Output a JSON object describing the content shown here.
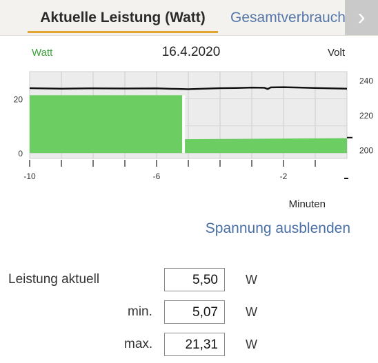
{
  "tabs": {
    "active_label": "Aktuelle Leistung (Watt)",
    "inactive_label": "Gesamtverbrauch",
    "next_icon": "chevron-right-icon"
  },
  "chart_data": {
    "type": "area",
    "left_axis_label": "Watt",
    "right_axis_label": "Volt",
    "title": "16.4.2020",
    "xlabel": "Minuten",
    "x_ticks": [
      "-10",
      "-6",
      "-2"
    ],
    "y_left_ticks": [
      "0",
      "20"
    ],
    "y_right_ticks": [
      "200",
      "220",
      "240"
    ],
    "xlim": [
      -10,
      0
    ],
    "ylim_left": [
      -2,
      30
    ],
    "ylim_right": [
      195,
      245
    ],
    "grid": true,
    "colors": {
      "power": "#6ccd63",
      "voltage": "#111111",
      "plot_bg": "#ececec"
    },
    "series": [
      {
        "axis": "left",
        "x": [
          -10,
          -5.15,
          -5.15,
          0
        ],
        "y": [
          21.31,
          21.31,
          5.07,
          5.5
        ]
      },
      {
        "axis": "right",
        "x": [
          -10,
          -9,
          -8,
          -7,
          -6,
          -5.5,
          -5,
          -4.5,
          -4,
          -3.5,
          -3,
          -2.6,
          -2.5,
          -2.4,
          -2,
          -1.5,
          -1,
          -0.5,
          0
        ],
        "y": [
          235.5,
          235.2,
          235.4,
          235.3,
          235.4,
          235.1,
          234.9,
          235.2,
          235.5,
          235.6,
          235.8,
          235.7,
          235.0,
          235.9,
          236.0,
          235.8,
          235.6,
          235.4,
          235.2
        ]
      }
    ]
  },
  "spannung_link": "Spannung ausblenden",
  "readings": {
    "current": {
      "label": "Leistung aktuell",
      "value": "5,50",
      "unit": "W"
    },
    "min": {
      "label": "min.",
      "value": "5,07",
      "unit": "W"
    },
    "max": {
      "label": "max.",
      "value": "21,31",
      "unit": "W"
    }
  }
}
